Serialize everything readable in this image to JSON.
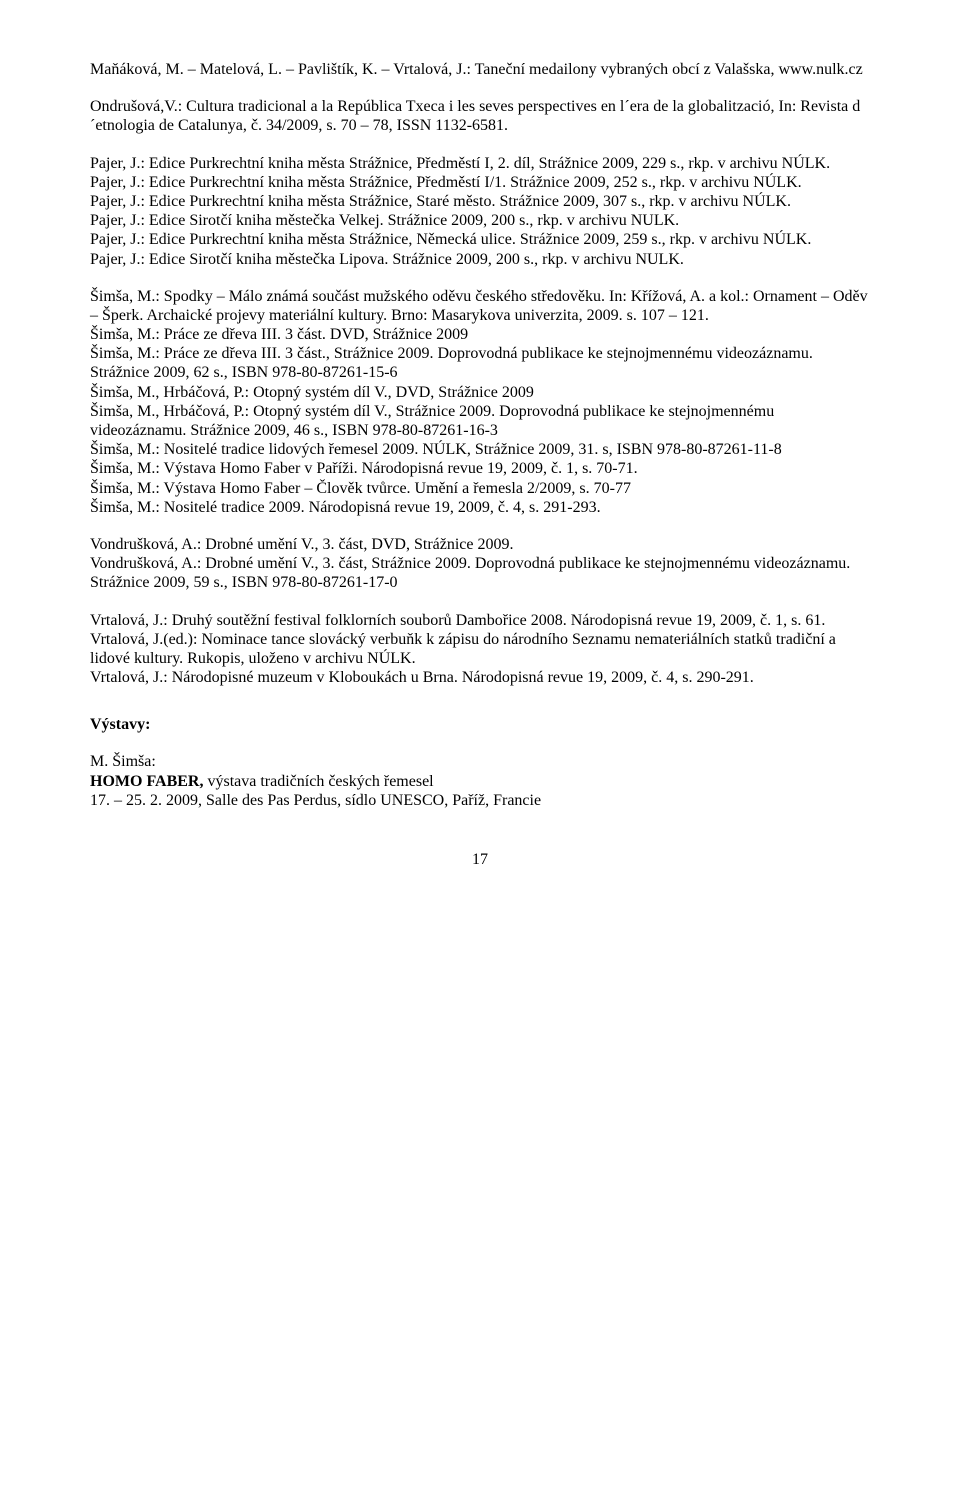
{
  "p1": "Maňáková, M. – Matelová, L. – Pavlištík, K. – Vrtalová, J.: Taneční medailony vybraných obcí z Valašska, www.nulk.cz",
  "p2": "Ondrušová,V.: Cultura tradicional a la República Txeca i les seves perspectives en l´era de la globalització, In: Revista d´etnologia de Catalunya, č. 34/2009, s. 70 – 78, ISSN 1132-6581.",
  "p3": {
    "l1": "Pajer, J.: Edice Purkrechtní kniha města Strážnice, Předměstí I, 2. díl, Strážnice 2009, 229 s., rkp. v archivu NÚLK.",
    "l2": "Pajer, J.: Edice Purkrechtní kniha města Strážnice, Předměstí I/1. Strážnice 2009, 252 s., rkp. v archivu NÚLK.",
    "l3": "Pajer, J.: Edice Purkrechtní kniha města Strážnice, Staré město. Strážnice 2009, 307 s., rkp. v archivu NÚLK.",
    "l4": "Pajer, J.: Edice Sirotčí kniha městečka Velkej. Strážnice 2009, 200 s., rkp. v archivu NULK.",
    "l5": "Pajer, J.: Edice Purkrechtní kniha města Strážnice, Německá ulice. Strážnice 2009, 259 s., rkp. v archivu NÚLK.",
    "l6": "Pajer, J.: Edice Sirotčí kniha městečka Lipova. Strážnice 2009, 200 s., rkp. v archivu NULK."
  },
  "p4": {
    "l1": "Šimša, M.: Spodky – Málo známá součást mužského oděvu českého středověku. In: Křížová, A. a kol.: Ornament – Oděv – Šperk. Archaické projevy materiální kultury. Brno: Masarykova univerzita, 2009. s. 107 – 121.",
    "l2": "Šimša, M.: Práce ze dřeva III. 3 část. DVD, Strážnice 2009",
    "l3": "Šimša, M.: Práce ze dřeva III. 3 část., Strážnice 2009. Doprovodná publikace ke stejnojmennému videozáznamu. Strážnice 2009, 62 s., ISBN 978-80-87261-15-6",
    "l4": "Šimša, M., Hrbáčová, P.: Otopný systém díl V., DVD, Strážnice 2009",
    "l5": "Šimša, M., Hrbáčová, P.: Otopný systém díl V., Strážnice 2009. Doprovodná publikace ke stejnojmennému videozáznamu. Strážnice 2009, 46 s., ISBN 978-80-87261-16-3",
    "l6": "Šimša, M.: Nositelé tradice lidových řemesel 2009. NÚLK, Strážnice 2009, 31. s, ISBN 978-80-87261-11-8",
    "l7": "Šimša, M.: Výstava Homo Faber v Paříži. Národopisná revue 19, 2009, č. 1, s. 70-71.",
    "l8": "Šimša, M.: Výstava Homo Faber – Člověk tvůrce. Umění a řemesla 2/2009, s. 70-77",
    "l9": "Šimša, M.: Nositelé tradice 2009. Národopisná revue 19, 2009, č. 4, s. 291-293."
  },
  "p5": {
    "l1": "Vondrušková, A.: Drobné umění V., 3. část, DVD, Strážnice 2009.",
    "l2": "Vondrušková, A.: Drobné umění V., 3. část, Strážnice 2009. Doprovodná publikace ke stejnojmennému videozáznamu. Strážnice 2009, 59 s., ISBN 978-80-87261-17-0"
  },
  "p6": {
    "l1": "Vrtalová, J.: Druhý soutěžní festival folklorních souborů Dambořice 2008. Národopisná revue 19, 2009, č. 1, s. 61.",
    "l2": "Vrtalová, J.(ed.): Nominace tance slovácký verbuňk k zápisu do národního Seznamu nemateriálních statků tradiční a lidové kultury. Rukopis, uloženo v archivu NÚLK.",
    "l3": "Vrtalová, J.: Národopisné muzeum v Kloboukách u Brna. Národopisná revue 19, 2009, č. 4, s. 290-291."
  },
  "section_title": "Výstavy:",
  "ex": {
    "author": "M. Šimša:",
    "title_bold": "HOMO FABER, ",
    "title_rest": "výstava tradičních českých řemesel",
    "date": "17. – 25. 2. 2009, Salle des Pas Perdus, sídlo UNESCO, Paříž, Francie"
  },
  "page_number": "17"
}
